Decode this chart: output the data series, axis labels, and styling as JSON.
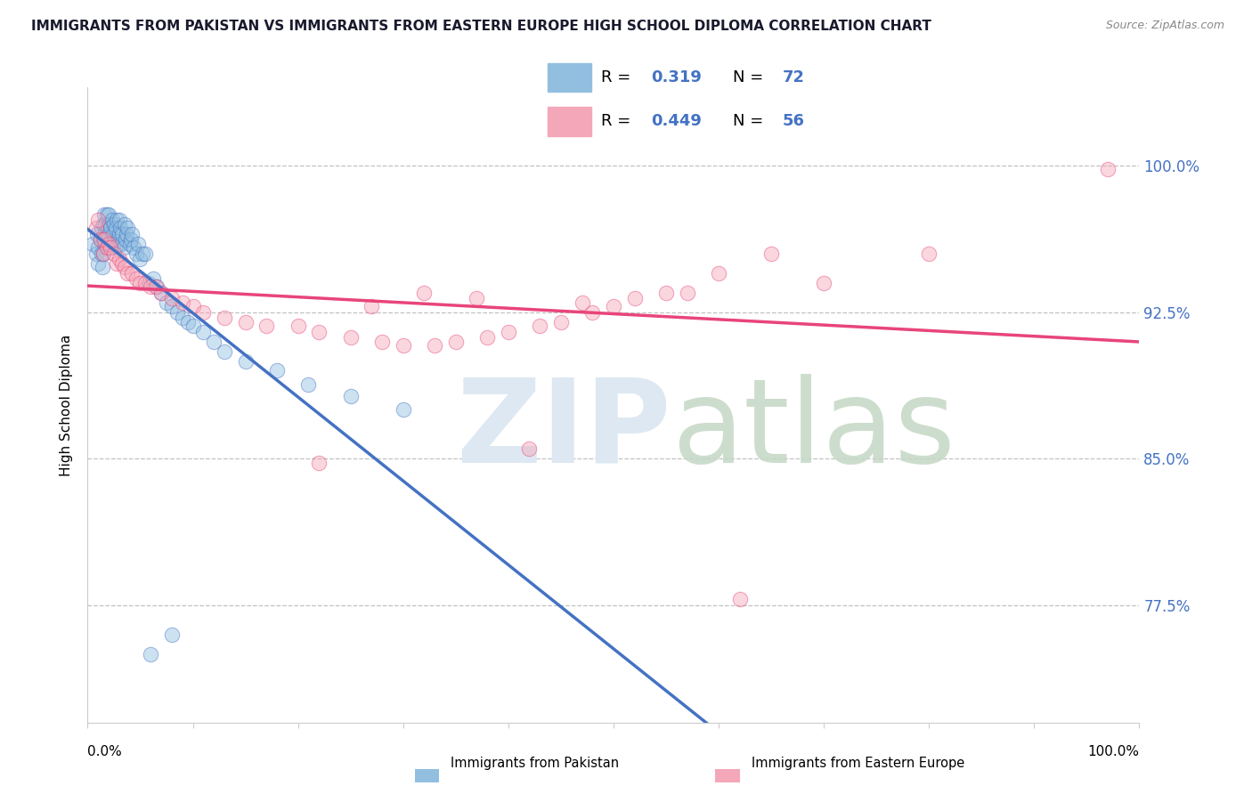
{
  "title": "IMMIGRANTS FROM PAKISTAN VS IMMIGRANTS FROM EASTERN EUROPE HIGH SCHOOL DIPLOMA CORRELATION CHART",
  "source": "Source: ZipAtlas.com",
  "ylabel": "High School Diploma",
  "ytick_values": [
    0.775,
    0.85,
    0.925,
    1.0
  ],
  "ytick_labels": [
    "77.5%",
    "85.0%",
    "92.5%",
    "100.0%"
  ],
  "xmin": 0.0,
  "xmax": 1.0,
  "ymin": 0.715,
  "ymax": 1.04,
  "legend_label1": "Immigrants from Pakistan",
  "legend_label2": "Immigrants from Eastern Europe",
  "R1": "0.319",
  "N1": "72",
  "R2": "0.449",
  "N2": "56",
  "color_blue": "#92BFE0",
  "color_pink": "#F4A7B9",
  "color_blue_dark": "#4472C4",
  "color_pink_dark": "#E8457A",
  "blue_x": [
    0.005,
    0.008,
    0.009,
    0.01,
    0.01,
    0.012,
    0.013,
    0.013,
    0.014,
    0.015,
    0.015,
    0.015,
    0.016,
    0.016,
    0.017,
    0.017,
    0.018,
    0.018,
    0.019,
    0.019,
    0.02,
    0.02,
    0.021,
    0.022,
    0.022,
    0.023,
    0.024,
    0.025,
    0.025,
    0.026,
    0.027,
    0.028,
    0.029,
    0.03,
    0.03,
    0.031,
    0.032,
    0.033,
    0.034,
    0.035,
    0.036,
    0.037,
    0.038,
    0.04,
    0.041,
    0.042,
    0.044,
    0.046,
    0.048,
    0.05,
    0.052,
    0.055,
    0.058,
    0.062,
    0.066,
    0.07,
    0.075,
    0.08,
    0.085,
    0.09,
    0.095,
    0.1,
    0.11,
    0.12,
    0.13,
    0.15,
    0.18,
    0.21,
    0.25,
    0.3,
    0.08,
    0.06
  ],
  "blue_y": [
    0.96,
    0.955,
    0.965,
    0.958,
    0.95,
    0.962,
    0.968,
    0.955,
    0.948,
    0.962,
    0.97,
    0.955,
    0.965,
    0.975,
    0.96,
    0.97,
    0.965,
    0.975,
    0.958,
    0.968,
    0.975,
    0.965,
    0.97,
    0.968,
    0.96,
    0.972,
    0.965,
    0.97,
    0.96,
    0.958,
    0.968,
    0.972,
    0.96,
    0.965,
    0.972,
    0.968,
    0.96,
    0.965,
    0.958,
    0.97,
    0.962,
    0.965,
    0.968,
    0.96,
    0.962,
    0.965,
    0.958,
    0.955,
    0.96,
    0.952,
    0.955,
    0.955,
    0.94,
    0.942,
    0.938,
    0.935,
    0.93,
    0.928,
    0.925,
    0.922,
    0.92,
    0.918,
    0.915,
    0.91,
    0.905,
    0.9,
    0.895,
    0.888,
    0.882,
    0.875,
    0.76,
    0.75
  ],
  "pink_x": [
    0.008,
    0.01,
    0.012,
    0.015,
    0.016,
    0.018,
    0.02,
    0.022,
    0.025,
    0.028,
    0.03,
    0.033,
    0.035,
    0.038,
    0.042,
    0.046,
    0.05,
    0.055,
    0.06,
    0.065,
    0.07,
    0.08,
    0.09,
    0.1,
    0.11,
    0.13,
    0.15,
    0.17,
    0.2,
    0.22,
    0.25,
    0.28,
    0.3,
    0.33,
    0.35,
    0.38,
    0.4,
    0.43,
    0.45,
    0.48,
    0.5,
    0.55,
    0.6,
    0.65,
    0.22,
    0.27,
    0.32,
    0.37,
    0.42,
    0.47,
    0.52,
    0.57,
    0.62,
    0.7,
    0.8,
    0.97
  ],
  "pink_y": [
    0.968,
    0.972,
    0.962,
    0.955,
    0.962,
    0.958,
    0.96,
    0.958,
    0.955,
    0.95,
    0.952,
    0.95,
    0.948,
    0.945,
    0.945,
    0.942,
    0.94,
    0.94,
    0.938,
    0.938,
    0.935,
    0.932,
    0.93,
    0.928,
    0.925,
    0.922,
    0.92,
    0.918,
    0.918,
    0.915,
    0.912,
    0.91,
    0.908,
    0.908,
    0.91,
    0.912,
    0.915,
    0.918,
    0.92,
    0.925,
    0.928,
    0.935,
    0.945,
    0.955,
    0.848,
    0.928,
    0.935,
    0.932,
    0.855,
    0.93,
    0.932,
    0.935,
    0.778,
    0.94,
    0.955,
    0.998
  ]
}
